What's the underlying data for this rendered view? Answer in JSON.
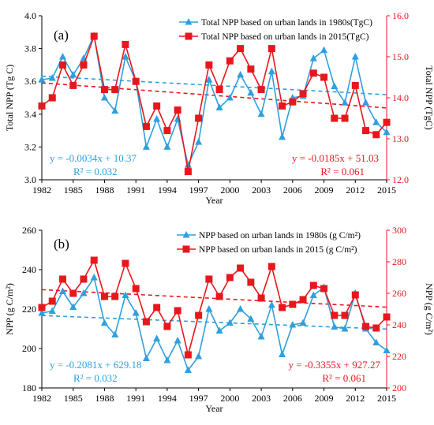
{
  "chart_data": [
    {
      "type": "line",
      "panel_label": "(a)",
      "xlabel": "Year",
      "ylabel": "Total NPP (Tg C)",
      "ylabel_right": "Total NPP (TgC)",
      "x": [
        1982,
        1983,
        1984,
        1985,
        1986,
        1987,
        1988,
        1989,
        1990,
        1991,
        1992,
        1993,
        1994,
        1995,
        1996,
        1997,
        1998,
        1999,
        2000,
        2001,
        2002,
        2003,
        2004,
        2005,
        2006,
        2007,
        2008,
        2009,
        2010,
        2011,
        2012,
        2013,
        2014,
        2015
      ],
      "xticks": [
        1982,
        1985,
        1988,
        1991,
        1994,
        1997,
        2000,
        2003,
        2006,
        2009,
        2012,
        2015
      ],
      "xlim": [
        1982,
        2015
      ],
      "ylim": [
        3.0,
        4.0
      ],
      "yticks": [
        "3.0",
        "3.2",
        "3.4",
        "3.6",
        "3.8",
        "4.0"
      ],
      "ylim_right": [
        12.0,
        16.0
      ],
      "yticks_right": [
        "12.0",
        "13.0",
        "14.0",
        "15.0",
        "16.0"
      ],
      "grid": false,
      "legend_position": "top-right",
      "series": [
        {
          "name": "Total NPP based on urban lands in 1980s(TgC)",
          "axis": "left",
          "color": "#2e9fdf",
          "marker": "triangle",
          "values": [
            3.61,
            3.62,
            3.75,
            3.64,
            3.74,
            3.88,
            3.5,
            3.42,
            3.75,
            3.6,
            3.2,
            3.37,
            3.2,
            3.37,
            3.09,
            3.23,
            3.61,
            3.44,
            3.5,
            3.64,
            3.53,
            3.4,
            3.66,
            3.26,
            3.5,
            3.51,
            3.74,
            3.79,
            3.57,
            3.47,
            3.75,
            3.47,
            3.35,
            3.29
          ],
          "trend": {
            "slope": -0.0034,
            "intercept": 10.37,
            "equation": "y = -0.0034x + 10.37",
            "r2": "R² = 0.032"
          }
        },
        {
          "name": "Total NPP based on urban lands in 2015(TgC)",
          "axis": "right",
          "color": "#e8171d",
          "marker": "square",
          "values": [
            13.8,
            14.0,
            14.8,
            14.3,
            14.8,
            15.5,
            14.2,
            14.2,
            15.3,
            14.4,
            13.3,
            13.8,
            13.2,
            13.7,
            12.2,
            13.5,
            14.8,
            14.2,
            14.9,
            15.2,
            14.7,
            14.2,
            15.2,
            13.8,
            13.9,
            14.1,
            14.6,
            14.5,
            13.5,
            13.5,
            14.3,
            13.2,
            13.1,
            13.4
          ],
          "trend": {
            "slope": -0.0185,
            "intercept": 51.03,
            "equation": "y = -0.0185x + 51.03",
            "r2": "R² = 0.061"
          }
        }
      ]
    },
    {
      "type": "line",
      "panel_label": "(b)",
      "xlabel": "Year",
      "ylabel": "NPP (g C/m²)",
      "ylabel_right": "NPP (g C/m²)",
      "x": [
        1982,
        1983,
        1984,
        1985,
        1986,
        1987,
        1988,
        1989,
        1990,
        1991,
        1992,
        1993,
        1994,
        1995,
        1996,
        1997,
        1998,
        1999,
        2000,
        2001,
        2002,
        2003,
        2004,
        2005,
        2006,
        2007,
        2008,
        2009,
        2010,
        2011,
        2012,
        2013,
        2014,
        2015
      ],
      "xticks": [
        1982,
        1985,
        1988,
        1991,
        1994,
        1997,
        2000,
        2003,
        2006,
        2009,
        2012,
        2015
      ],
      "xlim": [
        1982,
        2015
      ],
      "ylim": [
        180,
        260
      ],
      "yticks": [
        "180",
        "200",
        "220",
        "240",
        "260"
      ],
      "ylim_right": [
        200,
        300
      ],
      "yticks_right": [
        "200",
        "220",
        "240",
        "260",
        "280",
        "300"
      ],
      "grid": false,
      "legend_position": "top-right",
      "series": [
        {
          "name": "NPP based on urban lands in 1980s (g C/m²)",
          "axis": "left",
          "color": "#2e9fdf",
          "marker": "triangle",
          "values": [
            218,
            219,
            229,
            221,
            228,
            236,
            213,
            207,
            227,
            218,
            195,
            205,
            194,
            204,
            189,
            196,
            220,
            209,
            213,
            220,
            215,
            206,
            222,
            197,
            212,
            213,
            227,
            231,
            211,
            210,
            228,
            210,
            203,
            199
          ],
          "trend": {
            "slope": -0.2081,
            "intercept": 629.18,
            "equation": "y = -0.2081x + 629.18",
            "r2": "R² = 0.032"
          }
        },
        {
          "name": "NPP based on urban lands in 2015 (g C/m²)",
          "axis": "right",
          "color": "#e8171d",
          "marker": "square",
          "values": [
            251,
            255,
            269,
            260,
            269,
            281,
            258,
            258,
            279,
            263,
            242,
            251,
            239,
            249,
            221,
            246,
            269,
            258,
            270,
            276,
            267,
            257,
            277,
            251,
            253,
            256,
            265,
            263,
            246,
            246,
            259,
            239,
            238,
            245
          ],
          "trend": {
            "slope": -0.3355,
            "intercept": 927.27,
            "equation": "y = -0.3355x + 927.27",
            "r2": "R² = 0.061"
          }
        }
      ]
    }
  ]
}
